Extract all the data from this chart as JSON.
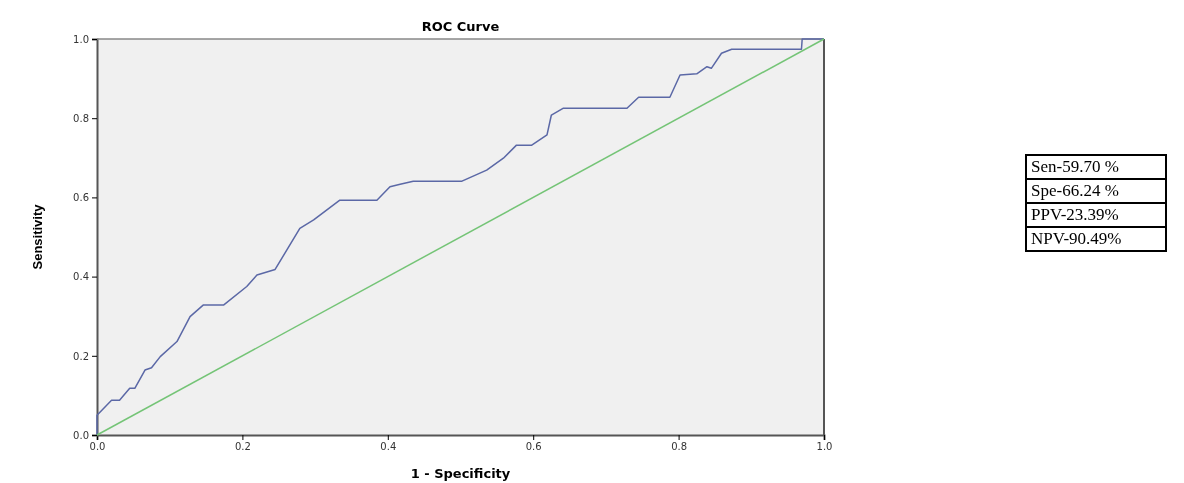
{
  "chart_data": {
    "type": "line",
    "title": "ROC Curve",
    "xlabel": "1 - Specificity",
    "ylabel": "Sensitivity",
    "xlim": [
      0,
      1
    ],
    "ylim": [
      0,
      1
    ],
    "xticks": [
      {
        "value": 0,
        "label": "0.0"
      },
      {
        "value": 0.2,
        "label": "0.2"
      },
      {
        "value": 0.4,
        "label": "0.4"
      },
      {
        "value": 0.6,
        "label": "0.6"
      },
      {
        "value": 0.8,
        "label": "0.8"
      },
      {
        "value": 1,
        "label": "1.0"
      }
    ],
    "yticks": [
      {
        "value": 0,
        "label": "0.0"
      },
      {
        "value": 0.2,
        "label": "0.2"
      },
      {
        "value": 0.4,
        "label": "0.4"
      },
      {
        "value": 0.6,
        "label": "0.6"
      },
      {
        "value": 0.8,
        "label": "0.8"
      },
      {
        "value": 1,
        "label": "1.0"
      }
    ],
    "marker": "none",
    "line_style": "solid",
    "series": [
      {
        "color": "#5b68a6",
        "x": [
          0,
          0,
          0.02,
          0.031,
          0.045,
          0.052,
          0.066,
          0.075,
          0.087,
          0.11,
          0.128,
          0.146,
          0.174,
          0.206,
          0.22,
          0.245,
          0.279,
          0.298,
          0.334,
          0.385,
          0.403,
          0.417,
          0.435,
          0.502,
          0.536,
          0.559,
          0.577,
          0.598,
          0.619,
          0.625,
          0.641,
          0.729,
          0.745,
          0.788,
          0.802,
          0.825,
          0.839,
          0.845,
          0.859,
          0.873,
          0.969,
          0.97,
          1
        ],
        "values": [
          0,
          0.05,
          0.088,
          0.088,
          0.118,
          0.118,
          0.164,
          0.17,
          0.198,
          0.236,
          0.299,
          0.328,
          0.328,
          0.375,
          0.404,
          0.418,
          0.522,
          0.543,
          0.593,
          0.593,
          0.627,
          0.633,
          0.641,
          0.641,
          0.669,
          0.699,
          0.732,
          0.732,
          0.758,
          0.808,
          0.825,
          0.825,
          0.853,
          0.853,
          0.909,
          0.912,
          0.93,
          0.926,
          0.964,
          0.974,
          0.974,
          1,
          1
        ]
      },
      {
        "color": "#74c476",
        "x": [
          0,
          1
        ],
        "values": [
          0,
          1
        ]
      }
    ],
    "annotations": [
      "Sen-59.70 %",
      "Spe-66.24 %",
      "PPV-23.39%",
      "NPV-90.49%"
    ]
  }
}
